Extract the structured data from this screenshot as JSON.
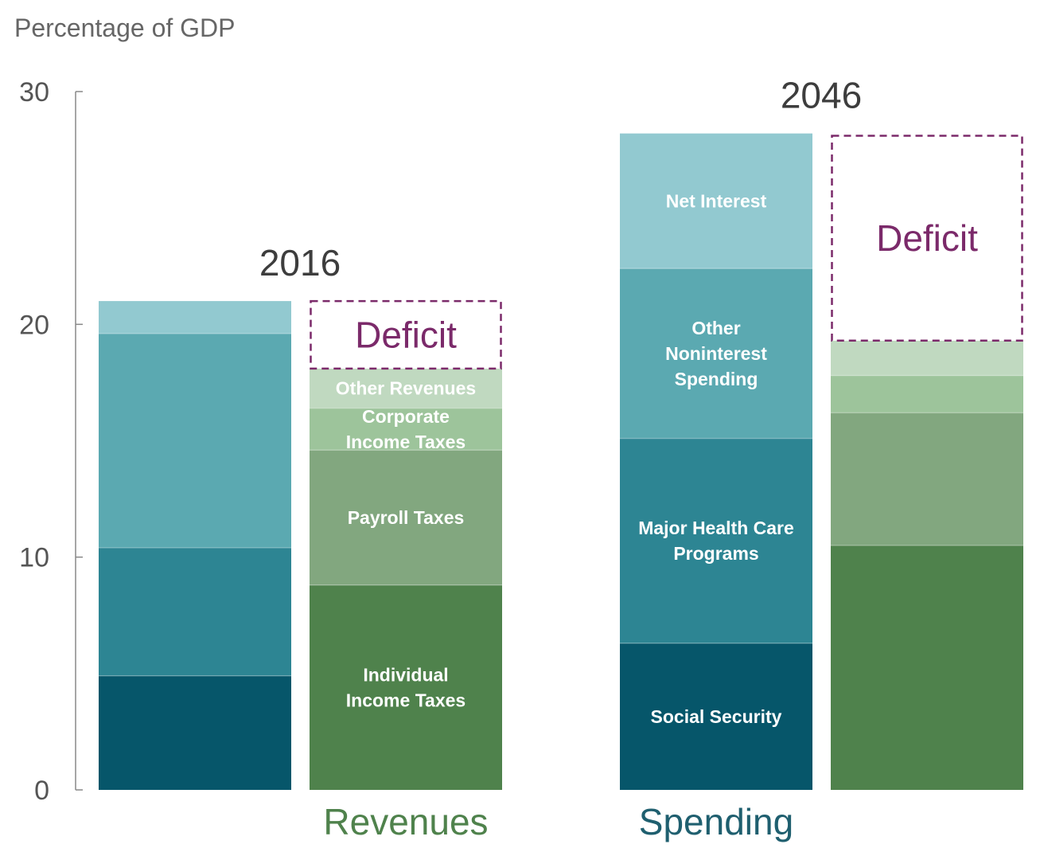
{
  "chart_data": {
    "type": "bar",
    "stacked": true,
    "ylabel": "Percentage of GDP",
    "ylim": [
      0,
      30
    ],
    "yticks": [
      0,
      10,
      20,
      30
    ],
    "grid": false,
    "groups": [
      {
        "year": "2016",
        "spending": [
          {
            "name": "Social Security",
            "value": 4.9,
            "color": "#06566a"
          },
          {
            "name": "Major Health Care Programs",
            "value": 5.5,
            "color": "#2d8593"
          },
          {
            "name": "Other Noninterest Spending",
            "value": 9.2,
            "color": "#5ba9b1"
          },
          {
            "name": "Net Interest",
            "value": 1.4,
            "color": "#92c9d0"
          }
        ],
        "revenues": [
          {
            "name": "Individual Income Taxes",
            "value": 8.8,
            "color": "#4f824c"
          },
          {
            "name": "Payroll Taxes",
            "value": 5.8,
            "color": "#82a77f"
          },
          {
            "name": "Corporate Income Taxes",
            "value": 1.8,
            "color": "#9dc49b"
          },
          {
            "name": "Other Revenues",
            "value": 1.7,
            "color": "#c0d9c0"
          }
        ],
        "deficit": 2.9
      },
      {
        "year": "2046",
        "spending": [
          {
            "name": "Social Security",
            "value": 6.3,
            "color": "#06566a"
          },
          {
            "name": "Major Health Care Programs",
            "value": 8.8,
            "color": "#2d8593"
          },
          {
            "name": "Other Noninterest Spending",
            "value": 7.3,
            "color": "#5ba9b1"
          },
          {
            "name": "Net Interest",
            "value": 5.8,
            "color": "#92c9d0"
          }
        ],
        "revenues": [
          {
            "name": "Individual Income Taxes",
            "value": 10.5,
            "color": "#4f824c"
          },
          {
            "name": "Payroll Taxes",
            "value": 5.7,
            "color": "#82a77f"
          },
          {
            "name": "Corporate Income Taxes",
            "value": 1.6,
            "color": "#9dc49b"
          },
          {
            "name": "Other Revenues",
            "value": 1.5,
            "color": "#c0d9c0"
          }
        ],
        "deficit": 8.8
      }
    ],
    "segment_labels": {
      "Social Security": [
        "Social Security"
      ],
      "Major Health Care Programs": [
        "Major Health Care",
        "Programs"
      ],
      "Other Noninterest Spending": [
        "Other",
        "Noninterest",
        "Spending"
      ],
      "Net Interest": [
        "Net Interest"
      ],
      "Individual Income Taxes": [
        "Individual",
        "Income Taxes"
      ],
      "Payroll Taxes": [
        "Payroll Taxes"
      ],
      "Corporate Income Taxes": [
        "Corporate",
        "Income Taxes"
      ],
      "Other Revenues": [
        "Other Revenues"
      ]
    },
    "deficit_label": "Deficit",
    "deficit_color": "#7b2a6a",
    "revenues_label": "Revenues",
    "revenues_label_color": "#4f824c",
    "spending_label": "Spending",
    "spending_label_color": "#1f5f6f"
  }
}
